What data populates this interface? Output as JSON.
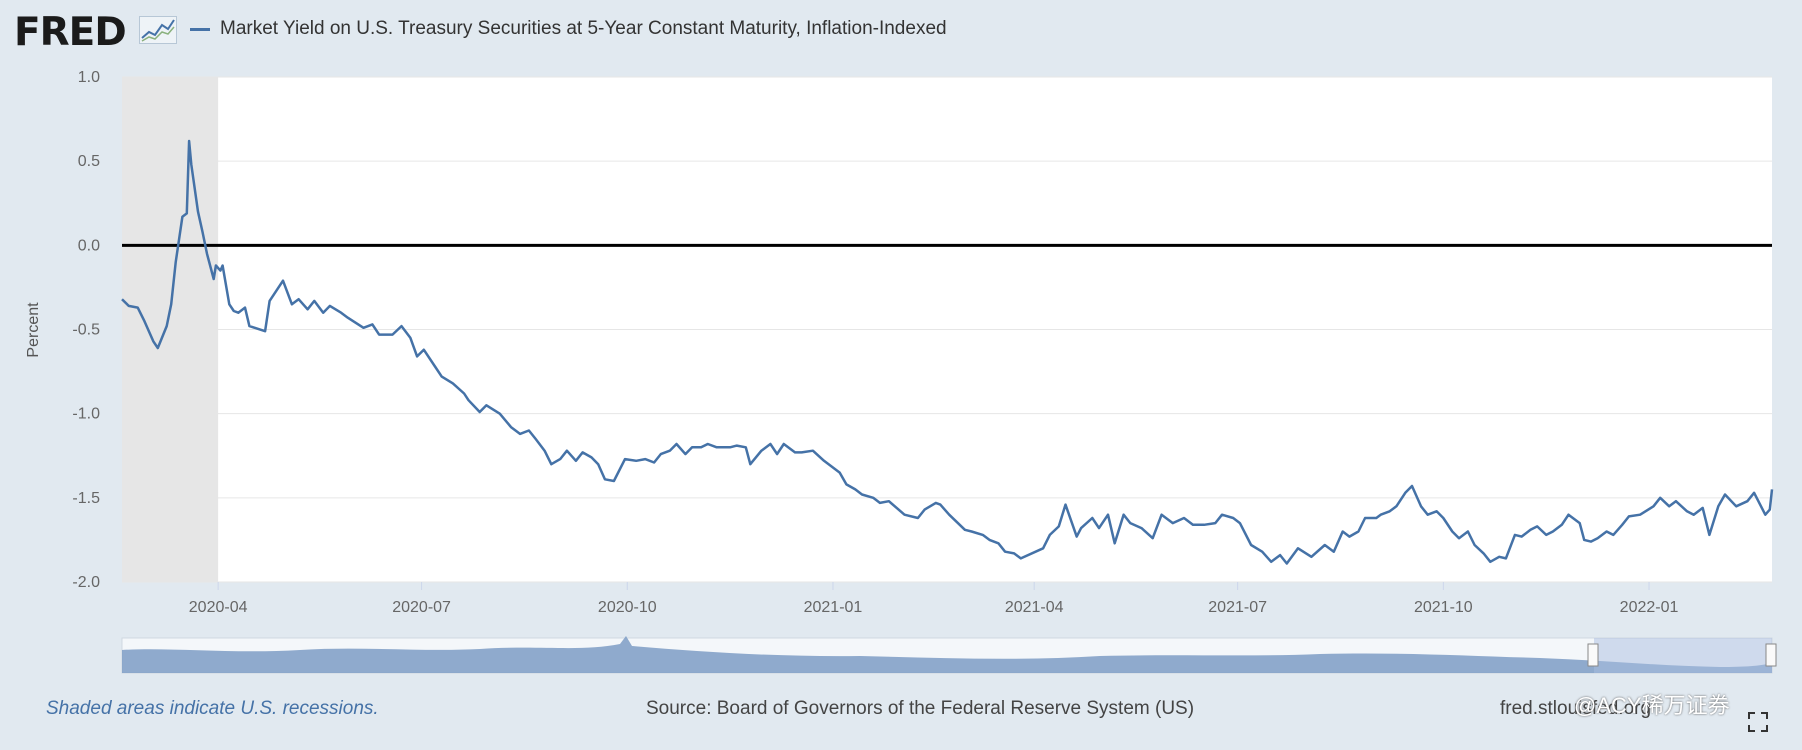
{
  "header": {
    "logo_text": "FRED",
    "legend_label": "Market Yield on U.S. Treasury Securities at 5-Year Constant Maturity, Inflation-Indexed",
    "series_color": "#4572a7"
  },
  "footer": {
    "recession_note": "Shaded areas indicate U.S. recessions.",
    "source": "Source: Board of Governors of the Federal Reserve System (US)",
    "site": "fred.stlouisfed.org",
    "watermark": "@ACY稀万证券"
  },
  "chart_data": {
    "type": "line",
    "title": "",
    "xlabel": "",
    "ylabel": "Percent",
    "ylim": [
      -2.0,
      1.0
    ],
    "yticks": [
      "1.0",
      "0.5",
      "0.0",
      "-0.5",
      "-1.0",
      "-1.5",
      "-2.0"
    ],
    "xticks": [
      "2020-04",
      "2020-07",
      "2020-10",
      "2021-01",
      "2021-04",
      "2021-07",
      "2021-10",
      "2022-01"
    ],
    "xlim": [
      "2020-02-18",
      "2022-02-25"
    ],
    "grid": true,
    "zero_line": true,
    "recession": {
      "start": "2020-02-18",
      "end": "2020-04-01",
      "color": "#e6e6e6"
    },
    "series": [
      {
        "values": [
          [
            "2020-02-18",
            -0.32
          ],
          [
            "2020-02-21",
            -0.36
          ],
          [
            "2020-02-25",
            -0.37
          ],
          [
            "2020-02-28",
            -0.45
          ],
          [
            "2020-03-03",
            -0.57
          ],
          [
            "2020-03-05",
            -0.61
          ],
          [
            "2020-03-09",
            -0.48
          ],
          [
            "2020-03-11",
            -0.35
          ],
          [
            "2020-03-13",
            -0.1
          ],
          [
            "2020-03-16",
            0.17
          ],
          [
            "2020-03-18",
            0.19
          ],
          [
            "2020-03-19",
            0.62
          ],
          [
            "2020-03-20",
            0.48
          ],
          [
            "2020-03-23",
            0.2
          ],
          [
            "2020-03-25",
            0.08
          ],
          [
            "2020-03-27",
            -0.05
          ],
          [
            "2020-03-30",
            -0.2
          ],
          [
            "2020-03-31",
            -0.12
          ],
          [
            "2020-04-02",
            -0.15
          ],
          [
            "2020-04-03",
            -0.12
          ],
          [
            "2020-04-06",
            -0.35
          ],
          [
            "2020-04-08",
            -0.39
          ],
          [
            "2020-04-10",
            -0.4
          ],
          [
            "2020-04-13",
            -0.37
          ],
          [
            "2020-04-15",
            -0.48
          ],
          [
            "2020-04-22",
            -0.51
          ],
          [
            "2020-04-24",
            -0.33
          ],
          [
            "2020-04-27",
            -0.27
          ],
          [
            "2020-04-30",
            -0.21
          ],
          [
            "2020-05-04",
            -0.35
          ],
          [
            "2020-05-07",
            -0.32
          ],
          [
            "2020-05-11",
            -0.38
          ],
          [
            "2020-05-14",
            -0.33
          ],
          [
            "2020-05-18",
            -0.4
          ],
          [
            "2020-05-21",
            -0.36
          ],
          [
            "2020-05-26",
            -0.4
          ],
          [
            "2020-05-29",
            -0.43
          ],
          [
            "2020-06-05",
            -0.49
          ],
          [
            "2020-06-09",
            -0.47
          ],
          [
            "2020-06-12",
            -0.53
          ],
          [
            "2020-06-18",
            -0.53
          ],
          [
            "2020-06-22",
            -0.48
          ],
          [
            "2020-06-26",
            -0.55
          ],
          [
            "2020-06-29",
            -0.66
          ],
          [
            "2020-07-02",
            -0.62
          ],
          [
            "2020-07-07",
            -0.72
          ],
          [
            "2020-07-10",
            -0.78
          ],
          [
            "2020-07-15",
            -0.82
          ],
          [
            "2020-07-20",
            -0.88
          ],
          [
            "2020-07-22",
            -0.92
          ],
          [
            "2020-07-27",
            -0.99
          ],
          [
            "2020-07-30",
            -0.95
          ],
          [
            "2020-08-05",
            -1.0
          ],
          [
            "2020-08-10",
            -1.08
          ],
          [
            "2020-08-14",
            -1.12
          ],
          [
            "2020-08-18",
            -1.1
          ],
          [
            "2020-08-21",
            -1.15
          ],
          [
            "2020-08-25",
            -1.22
          ],
          [
            "2020-08-28",
            -1.3
          ],
          [
            "2020-09-01",
            -1.27
          ],
          [
            "2020-09-04",
            -1.22
          ],
          [
            "2020-09-08",
            -1.28
          ],
          [
            "2020-09-11",
            -1.23
          ],
          [
            "2020-09-15",
            -1.26
          ],
          [
            "2020-09-18",
            -1.3
          ],
          [
            "2020-09-21",
            -1.39
          ],
          [
            "2020-09-25",
            -1.4
          ],
          [
            "2020-09-30",
            -1.27
          ],
          [
            "2020-10-05",
            -1.28
          ],
          [
            "2020-10-09",
            -1.27
          ],
          [
            "2020-10-13",
            -1.29
          ],
          [
            "2020-10-16",
            -1.24
          ],
          [
            "2020-10-20",
            -1.22
          ],
          [
            "2020-10-23",
            -1.18
          ],
          [
            "2020-10-27",
            -1.24
          ],
          [
            "2020-10-30",
            -1.2
          ],
          [
            "2020-11-03",
            -1.2
          ],
          [
            "2020-11-06",
            -1.18
          ],
          [
            "2020-11-10",
            -1.2
          ],
          [
            "2020-11-16",
            -1.2
          ],
          [
            "2020-11-19",
            -1.19
          ],
          [
            "2020-11-23",
            -1.2
          ],
          [
            "2020-11-25",
            -1.3
          ],
          [
            "2020-11-30",
            -1.22
          ],
          [
            "2020-12-04",
            -1.18
          ],
          [
            "2020-12-07",
            -1.24
          ],
          [
            "2020-12-10",
            -1.18
          ],
          [
            "2020-12-15",
            -1.23
          ],
          [
            "2020-12-18",
            -1.23
          ],
          [
            "2020-12-23",
            -1.22
          ],
          [
            "2020-12-28",
            -1.28
          ],
          [
            "2021-01-04",
            -1.35
          ],
          [
            "2021-01-07",
            -1.42
          ],
          [
            "2021-01-11",
            -1.45
          ],
          [
            "2021-01-14",
            -1.48
          ],
          [
            "2021-01-19",
            -1.5
          ],
          [
            "2021-01-22",
            -1.53
          ],
          [
            "2021-01-26",
            -1.52
          ],
          [
            "2021-02-02",
            -1.6
          ],
          [
            "2021-02-08",
            -1.62
          ],
          [
            "2021-02-11",
            -1.57
          ],
          [
            "2021-02-16",
            -1.53
          ],
          [
            "2021-02-18",
            -1.54
          ],
          [
            "2021-02-22",
            -1.6
          ],
          [
            "2021-03-01",
            -1.69
          ],
          [
            "2021-03-04",
            -1.7
          ],
          [
            "2021-03-09",
            -1.72
          ],
          [
            "2021-03-12",
            -1.75
          ],
          [
            "2021-03-16",
            -1.77
          ],
          [
            "2021-03-19",
            -1.82
          ],
          [
            "2021-03-23",
            -1.83
          ],
          [
            "2021-03-26",
            -1.86
          ],
          [
            "2021-04-05",
            -1.8
          ],
          [
            "2021-04-08",
            -1.72
          ],
          [
            "2021-04-12",
            -1.67
          ],
          [
            "2021-04-15",
            -1.54
          ],
          [
            "2021-04-20",
            -1.73
          ],
          [
            "2021-04-22",
            -1.68
          ],
          [
            "2021-04-27",
            -1.62
          ],
          [
            "2021-04-30",
            -1.68
          ],
          [
            "2021-05-04",
            -1.6
          ],
          [
            "2021-05-07",
            -1.77
          ],
          [
            "2021-05-11",
            -1.6
          ],
          [
            "2021-05-14",
            -1.65
          ],
          [
            "2021-05-19",
            -1.68
          ],
          [
            "2021-05-24",
            -1.74
          ],
          [
            "2021-05-28",
            -1.6
          ],
          [
            "2021-06-02",
            -1.65
          ],
          [
            "2021-06-07",
            -1.62
          ],
          [
            "2021-06-11",
            -1.66
          ],
          [
            "2021-06-16",
            -1.66
          ],
          [
            "2021-06-21",
            -1.65
          ],
          [
            "2021-06-24",
            -1.6
          ],
          [
            "2021-06-29",
            -1.62
          ],
          [
            "2021-07-02",
            -1.65
          ],
          [
            "2021-07-07",
            -1.78
          ],
          [
            "2021-07-12",
            -1.82
          ],
          [
            "2021-07-16",
            -1.88
          ],
          [
            "2021-07-20",
            -1.84
          ],
          [
            "2021-07-23",
            -1.89
          ],
          [
            "2021-07-28",
            -1.8
          ],
          [
            "2021-08-03",
            -1.85
          ],
          [
            "2021-08-09",
            -1.78
          ],
          [
            "2021-08-13",
            -1.82
          ],
          [
            "2021-08-17",
            -1.7
          ],
          [
            "2021-08-20",
            -1.73
          ],
          [
            "2021-08-24",
            -1.7
          ],
          [
            "2021-08-27",
            -1.62
          ],
          [
            "2021-09-01",
            -1.62
          ],
          [
            "2021-09-03",
            -1.6
          ],
          [
            "2021-09-07",
            -1.58
          ],
          [
            "2021-09-10",
            -1.55
          ],
          [
            "2021-09-14",
            -1.47
          ],
          [
            "2021-09-17",
            -1.43
          ],
          [
            "2021-09-21",
            -1.55
          ],
          [
            "2021-09-24",
            -1.6
          ],
          [
            "2021-09-28",
            -1.58
          ],
          [
            "2021-10-01",
            -1.62
          ],
          [
            "2021-10-05",
            -1.7
          ],
          [
            "2021-10-08",
            -1.74
          ],
          [
            "2021-10-12",
            -1.7
          ],
          [
            "2021-10-15",
            -1.78
          ],
          [
            "2021-10-19",
            -1.83
          ],
          [
            "2021-10-22",
            -1.88
          ],
          [
            "2021-10-26",
            -1.85
          ],
          [
            "2021-10-29",
            -1.86
          ],
          [
            "2021-11-02",
            -1.72
          ],
          [
            "2021-11-05",
            -1.73
          ],
          [
            "2021-11-09",
            -1.69
          ],
          [
            "2021-11-12",
            -1.67
          ],
          [
            "2021-11-16",
            -1.72
          ],
          [
            "2021-11-19",
            -1.7
          ],
          [
            "2021-11-23",
            -1.66
          ],
          [
            "2021-11-26",
            -1.6
          ],
          [
            "2021-12-01",
            -1.65
          ],
          [
            "2021-12-03",
            -1.75
          ],
          [
            "2021-12-06",
            -1.76
          ],
          [
            "2021-12-09",
            -1.74
          ],
          [
            "2021-12-13",
            -1.7
          ],
          [
            "2021-12-16",
            -1.72
          ],
          [
            "2021-12-20",
            -1.66
          ],
          [
            "2021-12-23",
            -1.61
          ],
          [
            "2021-12-28",
            -1.6
          ],
          [
            "2022-01-03",
            -1.55
          ],
          [
            "2022-01-06",
            -1.5
          ],
          [
            "2022-01-10",
            -1.55
          ],
          [
            "2022-01-13",
            -1.52
          ],
          [
            "2022-01-18",
            -1.58
          ],
          [
            "2022-01-21",
            -1.6
          ],
          [
            "2022-01-25",
            -1.56
          ],
          [
            "2022-01-28",
            -1.72
          ],
          [
            "2022-02-01",
            -1.55
          ],
          [
            "2022-02-04",
            -1.48
          ],
          [
            "2022-02-09",
            -1.55
          ],
          [
            "2022-02-14",
            -1.52
          ],
          [
            "2022-02-17",
            -1.47
          ],
          [
            "2022-02-22",
            -1.6
          ],
          [
            "2022-02-24",
            -1.57
          ],
          [
            "2022-02-25",
            -1.45
          ]
        ]
      }
    ]
  }
}
